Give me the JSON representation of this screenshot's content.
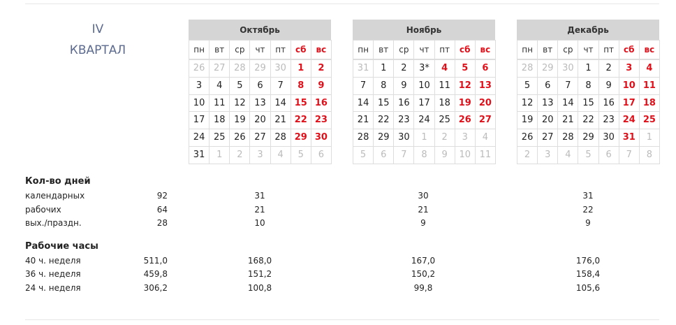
{
  "quarter": {
    "number": "IV",
    "label": "КВАРТАЛ"
  },
  "months": [
    {
      "name": "Октябрь",
      "weekdays": [
        "пн",
        "вт",
        "ср",
        "чт",
        "пт",
        "сб",
        "вс"
      ],
      "holidays": [],
      "weeks": [
        [
          "26",
          "27",
          "28",
          "29",
          "30",
          "1",
          "2"
        ],
        [
          "3",
          "4",
          "5",
          "6",
          "7",
          "8",
          "9"
        ],
        [
          "10",
          "11",
          "12",
          "13",
          "14",
          "15",
          "16"
        ],
        [
          "17",
          "18",
          "19",
          "20",
          "21",
          "22",
          "23"
        ],
        [
          "24",
          "25",
          "26",
          "27",
          "28",
          "29",
          "30"
        ],
        [
          "31",
          "1",
          "2",
          "3",
          "4",
          "5",
          "6"
        ]
      ]
    },
    {
      "name": "Ноябрь",
      "weekdays": [
        "пн",
        "вт",
        "ср",
        "чт",
        "пт",
        "сб",
        "вс"
      ],
      "holidays": [
        "4"
      ],
      "weeks": [
        [
          "31",
          "1",
          "2",
          "3*",
          "4",
          "5",
          "6"
        ],
        [
          "7",
          "8",
          "9",
          "10",
          "11",
          "12",
          "13"
        ],
        [
          "14",
          "15",
          "16",
          "17",
          "18",
          "19",
          "20"
        ],
        [
          "21",
          "22",
          "23",
          "24",
          "25",
          "26",
          "27"
        ],
        [
          "28",
          "29",
          "30",
          "1",
          "2",
          "3",
          "4"
        ],
        [
          "5",
          "6",
          "7",
          "8",
          "9",
          "10",
          "11"
        ]
      ]
    },
    {
      "name": "Декабрь",
      "weekdays": [
        "пн",
        "вт",
        "ср",
        "чт",
        "пт",
        "сб",
        "вс"
      ],
      "holidays": [],
      "weeks": [
        [
          "28",
          "29",
          "30",
          "1",
          "2",
          "3",
          "4"
        ],
        [
          "5",
          "6",
          "7",
          "8",
          "9",
          "10",
          "11"
        ],
        [
          "12",
          "13",
          "14",
          "15",
          "16",
          "17",
          "18"
        ],
        [
          "19",
          "20",
          "21",
          "22",
          "23",
          "24",
          "25"
        ],
        [
          "26",
          "27",
          "28",
          "29",
          "30",
          "31",
          "1"
        ],
        [
          "2",
          "3",
          "4",
          "5",
          "6",
          "7",
          "8"
        ]
      ]
    }
  ],
  "stats": [
    {
      "title": "Кол-во дней",
      "rows": [
        {
          "label": "календарных",
          "quarter": 92,
          "months": [
            31,
            30,
            31
          ]
        },
        {
          "label": "рабочих",
          "quarter": 64,
          "months": [
            21,
            21,
            22
          ]
        },
        {
          "label": "вых./праздн.",
          "quarter": 28,
          "months": [
            10,
            9,
            9
          ]
        }
      ]
    },
    {
      "title": "Рабочие часы",
      "rows": [
        {
          "label": "40 ч. неделя",
          "quarter": "511,0",
          "months": [
            "168,0",
            "167,0",
            "176,0"
          ]
        },
        {
          "label": "36 ч. неделя",
          "quarter": "459,8",
          "months": [
            "151,2",
            "150,2",
            "158,4"
          ]
        },
        {
          "label": "24 ч. неделя",
          "quarter": "306,2",
          "months": [
            "100,8",
            "99,8",
            "105,6"
          ]
        }
      ]
    }
  ]
}
